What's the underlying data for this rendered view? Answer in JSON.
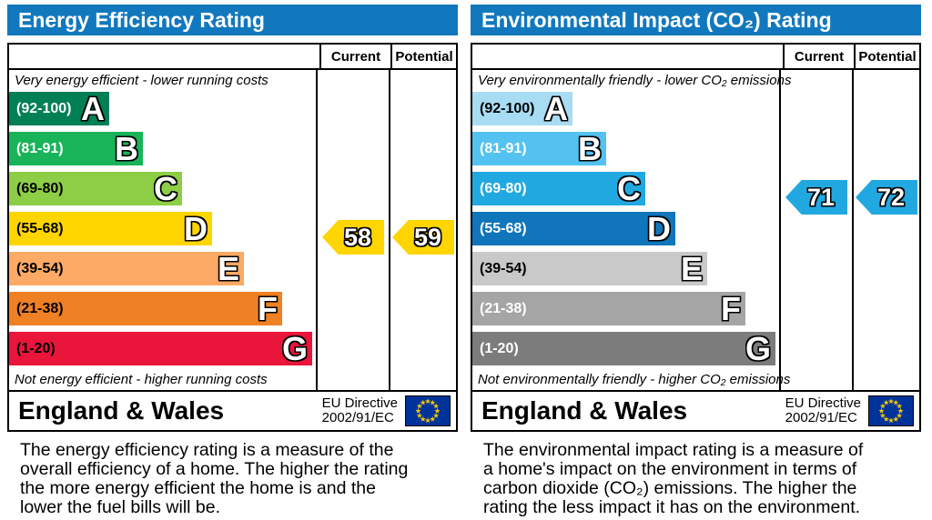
{
  "panels": [
    {
      "title": "Energy Efficiency Rating",
      "columns": {
        "current": "Current",
        "potential": "Potential"
      },
      "top_caption": "Very energy efficient - lower running costs",
      "bottom_caption": "Not energy efficient - higher running costs",
      "bands": [
        {
          "range": "(92-100)",
          "letter": "A",
          "color": "#008054",
          "text_color": "#ffffff"
        },
        {
          "range": "(81-91)",
          "letter": "B",
          "color": "#19b459",
          "text_color": "#ffffff"
        },
        {
          "range": "(69-80)",
          "letter": "C",
          "color": "#8dce46",
          "text_color": "#000000"
        },
        {
          "range": "(55-68)",
          "letter": "D",
          "color": "#ffd500",
          "text_color": "#000000"
        },
        {
          "range": "(39-54)",
          "letter": "E",
          "color": "#fcaa65",
          "text_color": "#000000"
        },
        {
          "range": "(21-38)",
          "letter": "F",
          "color": "#ef8023",
          "text_color": "#000000"
        },
        {
          "range": "(1-20)",
          "letter": "G",
          "color": "#e9153b",
          "text_color": "#000000"
        }
      ],
      "current": {
        "value": "58",
        "band": "D",
        "color": "#ffd500"
      },
      "potential": {
        "value": "59",
        "band": "D",
        "color": "#ffd500"
      },
      "footer": {
        "region": "England & Wales",
        "directive_line1": "EU Directive",
        "directive_line2": "2002/91/EC",
        "flag_icon": "eu-flag"
      },
      "description_lines": [
        "The energy efficiency rating is a measure of the",
        "overall efficiency of a home. The higher the rating",
        "the more energy efficient the home is and the",
        "lower the fuel bills will be."
      ]
    },
    {
      "title": "Environmental Impact (CO₂) Rating",
      "columns": {
        "current": "Current",
        "potential": "Potential"
      },
      "top_caption": "Very environmentally friendly - lower CO₂ emissions",
      "bottom_caption": "Not environmentally friendly - higher CO₂ emissions",
      "bands": [
        {
          "range": "(92-100)",
          "letter": "A",
          "color": "#a8dcf3",
          "text_color": "#000000"
        },
        {
          "range": "(81-91)",
          "letter": "B",
          "color": "#54c2f0",
          "text_color": "#ffffff"
        },
        {
          "range": "(69-80)",
          "letter": "C",
          "color": "#22a8e0",
          "text_color": "#ffffff"
        },
        {
          "range": "(55-68)",
          "letter": "D",
          "color": "#1075bb",
          "text_color": "#ffffff"
        },
        {
          "range": "(39-54)",
          "letter": "E",
          "color": "#c9c9c9",
          "text_color": "#000000"
        },
        {
          "range": "(21-38)",
          "letter": "F",
          "color": "#a5a5a5",
          "text_color": "#ffffff"
        },
        {
          "range": "(1-20)",
          "letter": "G",
          "color": "#7c7c7c",
          "text_color": "#ffffff"
        }
      ],
      "current": {
        "value": "71",
        "band": "C",
        "color": "#22a8e0"
      },
      "potential": {
        "value": "72",
        "band": "C",
        "color": "#22a8e0"
      },
      "footer": {
        "region": "England & Wales",
        "directive_line1": "EU Directive",
        "directive_line2": "2002/91/EC",
        "flag_icon": "eu-flag"
      },
      "description_lines": [
        "The environmental impact rating is a measure of",
        "a home's impact on the environment in terms of",
        "carbon dioxide (CO₂) emissions. The higher the",
        "rating the less impact it has on the environment."
      ]
    }
  ],
  "chart_data": [
    {
      "type": "bar",
      "title": "Energy Efficiency Rating",
      "categories": [
        "A (92-100)",
        "B (81-91)",
        "C (69-80)",
        "D (55-68)",
        "E (39-54)",
        "F (21-38)",
        "G (1-20)"
      ],
      "band_colors": [
        "#008054",
        "#19b459",
        "#8dce46",
        "#ffd500",
        "#fcaa65",
        "#ef8023",
        "#e9153b"
      ],
      "series": [
        {
          "name": "Current",
          "value": 58,
          "band": "D"
        },
        {
          "name": "Potential",
          "value": 59,
          "band": "D"
        }
      ],
      "value_range": [
        1,
        100
      ],
      "region": "England & Wales",
      "directive": "EU Directive 2002/91/EC"
    },
    {
      "type": "bar",
      "title": "Environmental Impact (CO₂) Rating",
      "categories": [
        "A (92-100)",
        "B (81-91)",
        "C (69-80)",
        "D (55-68)",
        "E (39-54)",
        "F (21-38)",
        "G (1-20)"
      ],
      "band_colors": [
        "#a8dcf3",
        "#54c2f0",
        "#22a8e0",
        "#1075bb",
        "#c9c9c9",
        "#a5a5a5",
        "#7c7c7c"
      ],
      "series": [
        {
          "name": "Current",
          "value": 71,
          "band": "C"
        },
        {
          "name": "Potential",
          "value": 72,
          "band": "C"
        }
      ],
      "value_range": [
        1,
        100
      ],
      "region": "England & Wales",
      "directive": "EU Directive 2002/91/EC"
    }
  ]
}
